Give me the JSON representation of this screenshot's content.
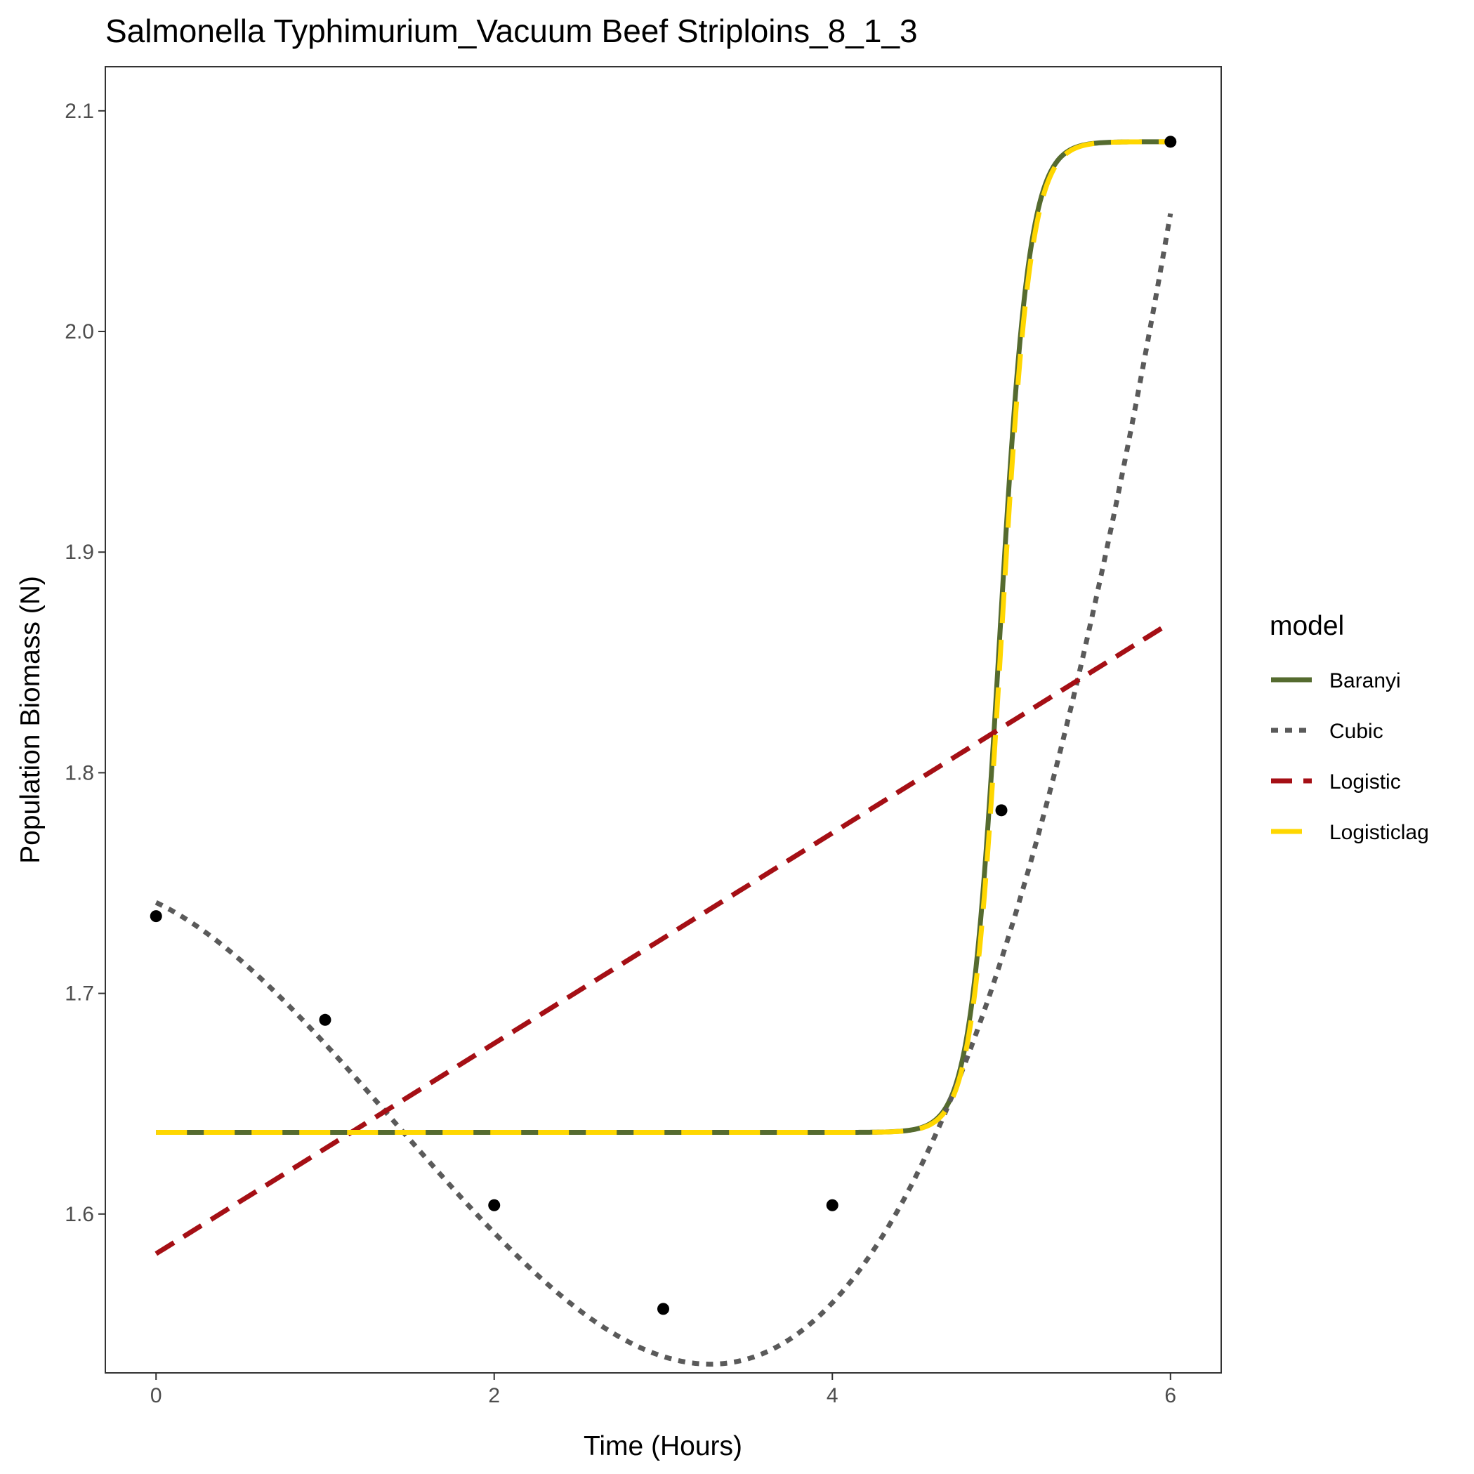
{
  "chart_data": {
    "type": "line",
    "title": "Salmonella Typhimurium_Vacuum Beef Striploins_8_1_3",
    "xlabel": "Time (Hours)",
    "ylabel": "Population Biomass (N)",
    "xlim": [
      -0.3,
      6.3
    ],
    "ylim": [
      1.528,
      2.12
    ],
    "x_ticks": [
      0,
      2,
      4,
      6
    ],
    "x_tick_labels": [
      "0",
      "2",
      "4",
      "6"
    ],
    "y_ticks": [
      1.6,
      1.7,
      1.8,
      1.9,
      2.0,
      2.1
    ],
    "y_tick_labels": [
      "1.6",
      "1.7",
      "1.8",
      "1.9",
      "2.0",
      "2.1"
    ],
    "grid": false,
    "legend": {
      "title": "model",
      "position": "right"
    },
    "points": {
      "x": [
        0,
        1,
        2,
        3,
        4,
        5,
        6
      ],
      "y": [
        1.735,
        1.688,
        1.604,
        1.557,
        1.604,
        1.783,
        2.086
      ]
    },
    "series": [
      {
        "name": "Baranyi",
        "color": "#556b2f",
        "dash": "solid",
        "model": "sigmoid",
        "params": {
          "y0": 1.637,
          "ymax": 2.086,
          "mid": 4.99,
          "k": 11.5
        }
      },
      {
        "name": "Cubic",
        "color": "#5a5a5a",
        "dash": "dotted",
        "model": "cubic",
        "params": {
          "c0": 1.7412,
          "c1": -0.0364,
          "c2": -0.0362,
          "c3": 0.00849
        }
      },
      {
        "name": "Logistic",
        "color": "#a50f15",
        "dash": "dashed",
        "model": "linear",
        "params": {
          "y0": 1.582,
          "y1": 1.868
        }
      },
      {
        "name": "Logisticlag",
        "color": "#ffd700",
        "dash": "longdash",
        "model": "sigmoid",
        "params": {
          "y0": 1.637,
          "ymax": 2.086,
          "mid": 5.0,
          "k": 11.5
        }
      }
    ]
  }
}
